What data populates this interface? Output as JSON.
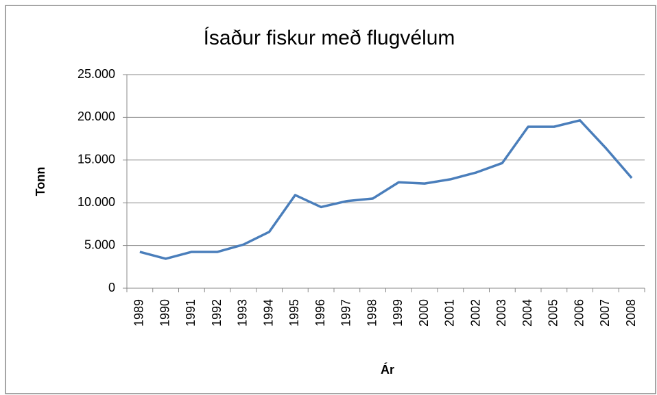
{
  "chart_data": {
    "type": "line",
    "title": "Ísaður fiskur með flugvélum",
    "x_label": "Ár",
    "y_label": "Tonn",
    "categories": [
      "1989",
      "1990",
      "1991",
      "1992",
      "1993",
      "1994",
      "1995",
      "1996",
      "1997",
      "1998",
      "1999",
      "2000",
      "2001",
      "2002",
      "2003",
      "2004",
      "2005",
      "2006",
      "2007",
      "2008"
    ],
    "series": [
      {
        "name": "Tonn",
        "color": "#4a7ebb",
        "values": [
          4250,
          3450,
          4250,
          4250,
          5100,
          6600,
          10900,
          9500,
          10200,
          10500,
          12400,
          12250,
          12750,
          13550,
          14650,
          18900,
          18900,
          19650,
          16400,
          12900
        ]
      }
    ],
    "ylim": [
      0,
      25000
    ],
    "yticks": [
      0,
      {
        "value": 5000,
        "label": "5.000"
      },
      {
        "value": 10000,
        "label": "10.000"
      },
      {
        "value": 15000,
        "label": "15.000"
      },
      {
        "value": 20000,
        "label": "20.000"
      },
      {
        "value": 25000,
        "label": "25.000"
      }
    ],
    "grid": true
  }
}
